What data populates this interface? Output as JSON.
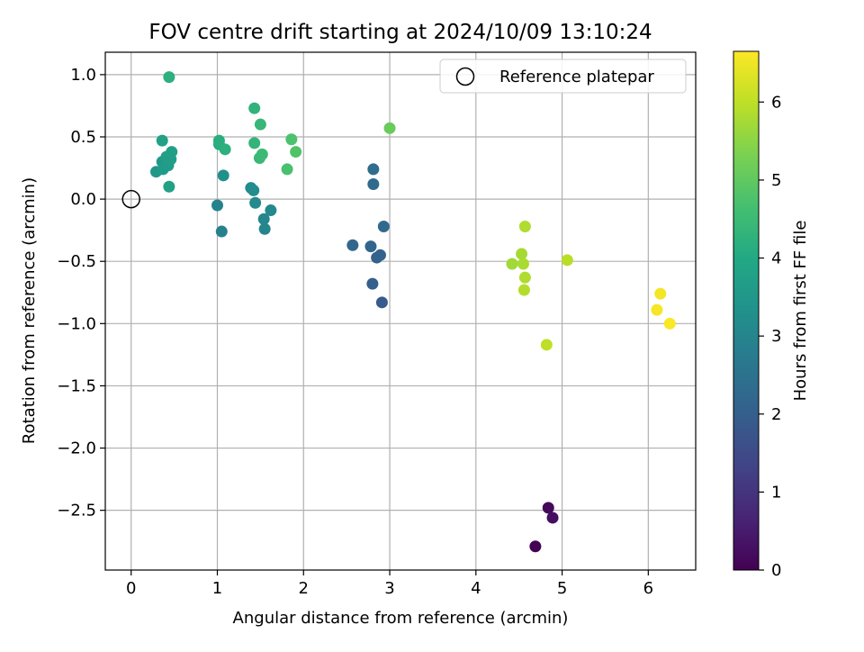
{
  "chart_data": {
    "type": "scatter",
    "title": "FOV centre drift starting at 2024/10/09 13:10:24",
    "xlabel": "Angular distance from reference (arcmin)",
    "ylabel": "Rotation from reference (arcmin)",
    "xlim": [
      -0.3,
      6.55
    ],
    "ylim": [
      -2.98,
      1.18
    ],
    "xticks": [
      0,
      1,
      2,
      3,
      4,
      5,
      6
    ],
    "xtick_labels": [
      "0",
      "1",
      "2",
      "3",
      "4",
      "5",
      "6"
    ],
    "yticks": [
      1.0,
      0.5,
      0.0,
      -0.5,
      -1.0,
      -1.5,
      -2.0,
      -2.5
    ],
    "ytick_labels": [
      "1.0",
      "0.5",
      "0.0",
      "−0.5",
      "−1.0",
      "−1.5",
      "−2.0",
      "−2.5"
    ],
    "grid": true,
    "legend": {
      "placement": "top-right",
      "entries": [
        "Reference platepar"
      ]
    },
    "reference_point": {
      "x": 0.0,
      "y": 0.0,
      "marker": "open circle"
    },
    "colorbar": {
      "label": "Hours from first FF file",
      "colormap": "viridis",
      "range": [
        0,
        6.65
      ],
      "ticks": [
        0,
        1,
        2,
        3,
        4,
        5,
        6
      ],
      "tick_labels": [
        "0",
        "1",
        "2",
        "3",
        "4",
        "5",
        "6"
      ]
    },
    "points": [
      {
        "x": 4.69,
        "y": -2.79,
        "hours": 0.0
      },
      {
        "x": 4.84,
        "y": -2.48,
        "hours": 0.15
      },
      {
        "x": 4.89,
        "y": -2.56,
        "hours": 0.25
      },
      {
        "x": 2.91,
        "y": -0.83,
        "hours": 1.9
      },
      {
        "x": 2.8,
        "y": -0.68,
        "hours": 2.0
      },
      {
        "x": 2.85,
        "y": -0.47,
        "hours": 2.05
      },
      {
        "x": 2.89,
        "y": -0.45,
        "hours": 2.1
      },
      {
        "x": 2.78,
        "y": -0.38,
        "hours": 2.15
      },
      {
        "x": 2.57,
        "y": -0.37,
        "hours": 2.2
      },
      {
        "x": 2.93,
        "y": -0.22,
        "hours": 2.25
      },
      {
        "x": 2.81,
        "y": 0.12,
        "hours": 2.3
      },
      {
        "x": 2.81,
        "y": 0.24,
        "hours": 2.35
      },
      {
        "x": 1.05,
        "y": -0.26,
        "hours": 2.9
      },
      {
        "x": 1.0,
        "y": -0.05,
        "hours": 2.95
      },
      {
        "x": 1.55,
        "y": -0.24,
        "hours": 3.0
      },
      {
        "x": 1.54,
        "y": -0.16,
        "hours": 3.05
      },
      {
        "x": 1.62,
        "y": -0.09,
        "hours": 3.1
      },
      {
        "x": 1.44,
        "y": -0.03,
        "hours": 3.15
      },
      {
        "x": 1.39,
        "y": 0.09,
        "hours": 3.2
      },
      {
        "x": 1.42,
        "y": 0.07,
        "hours": 3.2
      },
      {
        "x": 1.07,
        "y": 0.19,
        "hours": 3.3
      },
      {
        "x": 0.29,
        "y": 0.22,
        "hours": 3.5
      },
      {
        "x": 0.36,
        "y": 0.3,
        "hours": 3.55
      },
      {
        "x": 0.37,
        "y": 0.24,
        "hours": 3.6
      },
      {
        "x": 0.43,
        "y": 0.27,
        "hours": 3.65
      },
      {
        "x": 0.46,
        "y": 0.32,
        "hours": 3.7
      },
      {
        "x": 0.41,
        "y": 0.34,
        "hours": 3.7
      },
      {
        "x": 0.47,
        "y": 0.38,
        "hours": 3.75
      },
      {
        "x": 0.36,
        "y": 0.47,
        "hours": 3.8
      },
      {
        "x": 0.44,
        "y": 0.1,
        "hours": 3.8
      },
      {
        "x": 1.02,
        "y": 0.44,
        "hours": 4.1
      },
      {
        "x": 1.02,
        "y": 0.47,
        "hours": 4.15
      },
      {
        "x": 1.09,
        "y": 0.4,
        "hours": 4.2
      },
      {
        "x": 0.44,
        "y": 0.98,
        "hours": 4.2
      },
      {
        "x": 1.43,
        "y": 0.73,
        "hours": 4.3
      },
      {
        "x": 1.43,
        "y": 0.45,
        "hours": 4.35
      },
      {
        "x": 1.5,
        "y": 0.6,
        "hours": 4.4
      },
      {
        "x": 1.49,
        "y": 0.33,
        "hours": 4.45
      },
      {
        "x": 1.52,
        "y": 0.36,
        "hours": 4.5
      },
      {
        "x": 1.81,
        "y": 0.24,
        "hours": 4.7
      },
      {
        "x": 1.86,
        "y": 0.48,
        "hours": 4.75
      },
      {
        "x": 1.91,
        "y": 0.38,
        "hours": 4.8
      },
      {
        "x": 3.0,
        "y": 0.57,
        "hours": 5.1
      },
      {
        "x": 4.42,
        "y": -0.52,
        "hours": 5.7
      },
      {
        "x": 4.53,
        "y": -0.44,
        "hours": 5.75
      },
      {
        "x": 4.55,
        "y": -0.52,
        "hours": 5.8
      },
      {
        "x": 4.57,
        "y": -0.22,
        "hours": 5.85
      },
      {
        "x": 4.57,
        "y": -0.63,
        "hours": 5.85
      },
      {
        "x": 4.56,
        "y": -0.73,
        "hours": 5.9
      },
      {
        "x": 5.06,
        "y": -0.49,
        "hours": 5.95
      },
      {
        "x": 4.82,
        "y": -1.17,
        "hours": 6.0
      },
      {
        "x": 6.14,
        "y": -0.76,
        "hours": 6.55
      },
      {
        "x": 6.1,
        "y": -0.89,
        "hours": 6.58
      },
      {
        "x": 6.25,
        "y": -1.0,
        "hours": 6.62
      }
    ]
  }
}
